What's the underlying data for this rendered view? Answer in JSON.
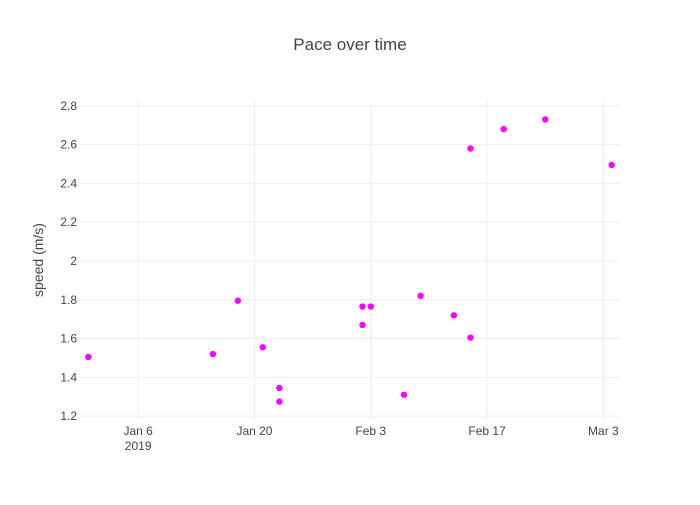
{
  "chart_data": {
    "type": "scatter",
    "title": "Pace over time",
    "xlabel": "",
    "ylabel": "speed (m/s)",
    "x_axis_type": "date",
    "xlim": [
      "2018-12-30",
      "2019-03-05"
    ],
    "ylim": [
      1.18,
      2.83
    ],
    "x_ticks": [
      {
        "date": "2019-01-06",
        "label": "Jan 6",
        "sublabel": "2019"
      },
      {
        "date": "2019-01-20",
        "label": "Jan 20"
      },
      {
        "date": "2019-02-03",
        "label": "Feb 3"
      },
      {
        "date": "2019-02-17",
        "label": "Feb 17"
      },
      {
        "date": "2019-03-03",
        "label": "Mar 3"
      }
    ],
    "y_ticks": [
      1.2,
      1.4,
      1.6,
      1.8,
      2,
      2.2,
      2.4,
      2.6,
      2.8
    ],
    "y_tick_labels": [
      "1.2",
      "1.4",
      "1.6",
      "1.8",
      "2",
      "2.2",
      "2.4",
      "2.6",
      "2.8"
    ],
    "grid": true,
    "legend": false,
    "marker_color": "#ff00ff",
    "series": [
      {
        "x": [
          "2018-12-31",
          "2019-01-15",
          "2019-01-18",
          "2019-01-21",
          "2019-01-23",
          "2019-01-23",
          "2019-02-02",
          "2019-02-02",
          "2019-02-03",
          "2019-02-07",
          "2019-02-09",
          "2019-02-13",
          "2019-02-15",
          "2019-02-15",
          "2019-02-19",
          "2019-02-24",
          "2019-03-04"
        ],
        "y": [
          1.505,
          1.52,
          1.795,
          1.555,
          1.345,
          1.275,
          1.765,
          1.67,
          1.765,
          1.31,
          1.82,
          1.72,
          2.58,
          1.605,
          2.68,
          2.73,
          2.495
        ]
      }
    ]
  }
}
